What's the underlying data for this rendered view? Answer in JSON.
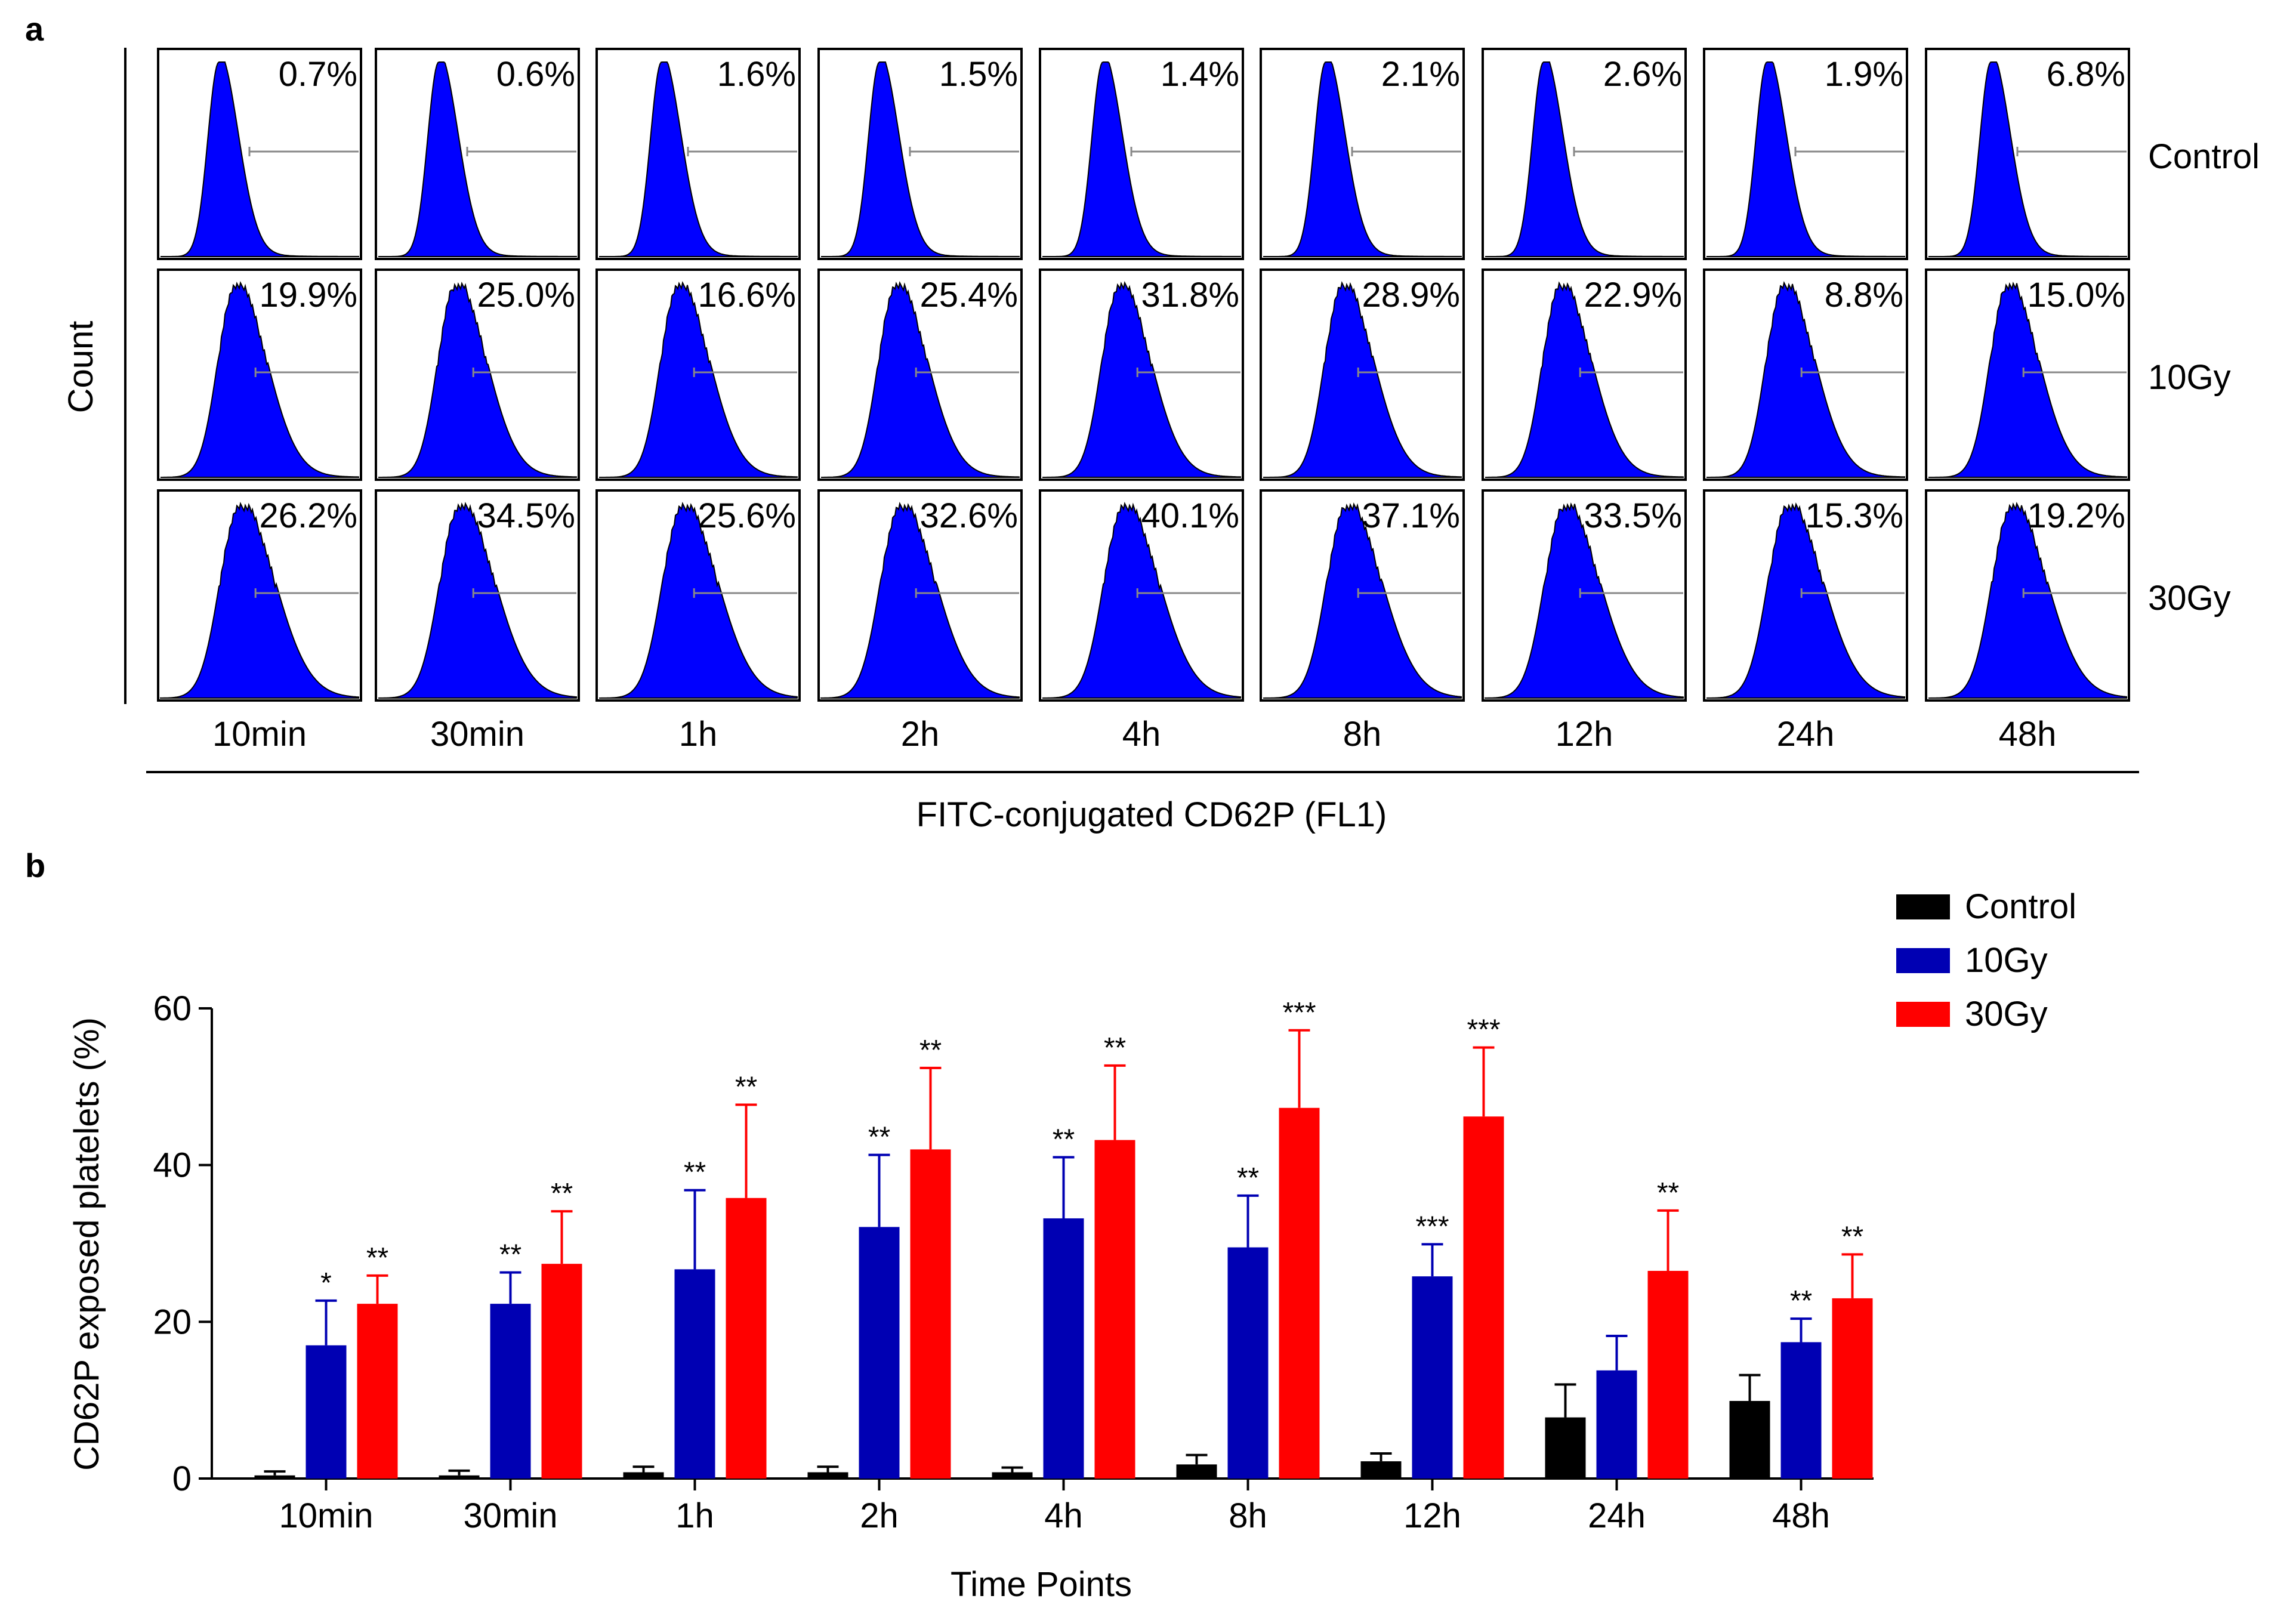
{
  "colors": {
    "control": "#000000",
    "gy10": "#0000b3",
    "gy30": "#ff0000",
    "histFill": "#0000ff",
    "gate": "#888888"
  },
  "panel_a": {
    "label": "a",
    "y_axis_label": "Count",
    "x_axis_label": "FITC-conjugated CD62P (FL1)",
    "time_points": [
      "10min",
      "30min",
      "1h",
      "2h",
      "4h",
      "8h",
      "12h",
      "24h",
      "48h"
    ],
    "rows": [
      {
        "name": "Control",
        "percents": [
          "0.7%",
          "0.6%",
          "1.6%",
          "1.5%",
          "1.4%",
          "2.1%",
          "2.6%",
          "1.9%",
          "6.8%"
        ]
      },
      {
        "name": "10Gy",
        "percents": [
          "19.9%",
          "25.0%",
          "16.6%",
          "25.4%",
          "31.8%",
          "28.9%",
          "22.9%",
          "8.8%",
          "15.0%"
        ]
      },
      {
        "name": "30Gy",
        "percents": [
          "26.2%",
          "34.5%",
          "25.6%",
          "32.6%",
          "40.1%",
          "37.1%",
          "33.5%",
          "15.3%",
          "19.2%"
        ]
      }
    ]
  },
  "panel_b": {
    "label": "b"
  },
  "chart_data": {
    "type": "bar",
    "title": "",
    "xlabel": "Time Points",
    "ylabel": "CD62P exposed platelets (%)",
    "ylim": [
      0,
      60
    ],
    "yticks": [
      "0",
      "20",
      "40",
      "60"
    ],
    "categories": [
      "10min",
      "30min",
      "1h",
      "2h",
      "4h",
      "8h",
      "12h",
      "24h",
      "48h"
    ],
    "legend_position": "top-right",
    "series": [
      {
        "name": "Control",
        "values": [
          0.4,
          0.4,
          0.8,
          0.8,
          0.8,
          1.8,
          2.2,
          7.8,
          9.9
        ],
        "errors": [
          0.5,
          0.6,
          0.7,
          0.7,
          0.6,
          1.2,
          1.0,
          4.2,
          3.3
        ],
        "significance": [
          "",
          "",
          "",
          "",
          "",
          "",
          "",
          "",
          ""
        ]
      },
      {
        "name": "10Gy",
        "values": [
          17.0,
          22.3,
          26.7,
          32.1,
          33.2,
          29.5,
          25.8,
          13.8,
          17.4
        ],
        "errors": [
          5.7,
          4.0,
          10.1,
          9.2,
          7.8,
          6.6,
          4.1,
          4.4,
          3.0
        ],
        "significance": [
          "*",
          "**",
          "**",
          "**",
          "**",
          "**",
          "***",
          "",
          "**"
        ]
      },
      {
        "name": "30Gy",
        "values": [
          22.3,
          27.4,
          35.8,
          42.0,
          43.2,
          47.3,
          46.2,
          26.5,
          23.0
        ],
        "errors": [
          3.6,
          6.7,
          11.9,
          10.4,
          9.5,
          9.9,
          8.8,
          7.7,
          5.6
        ],
        "significance": [
          "**",
          "**",
          "**",
          "**",
          "**",
          "***",
          "***",
          "**",
          "**"
        ]
      }
    ]
  }
}
